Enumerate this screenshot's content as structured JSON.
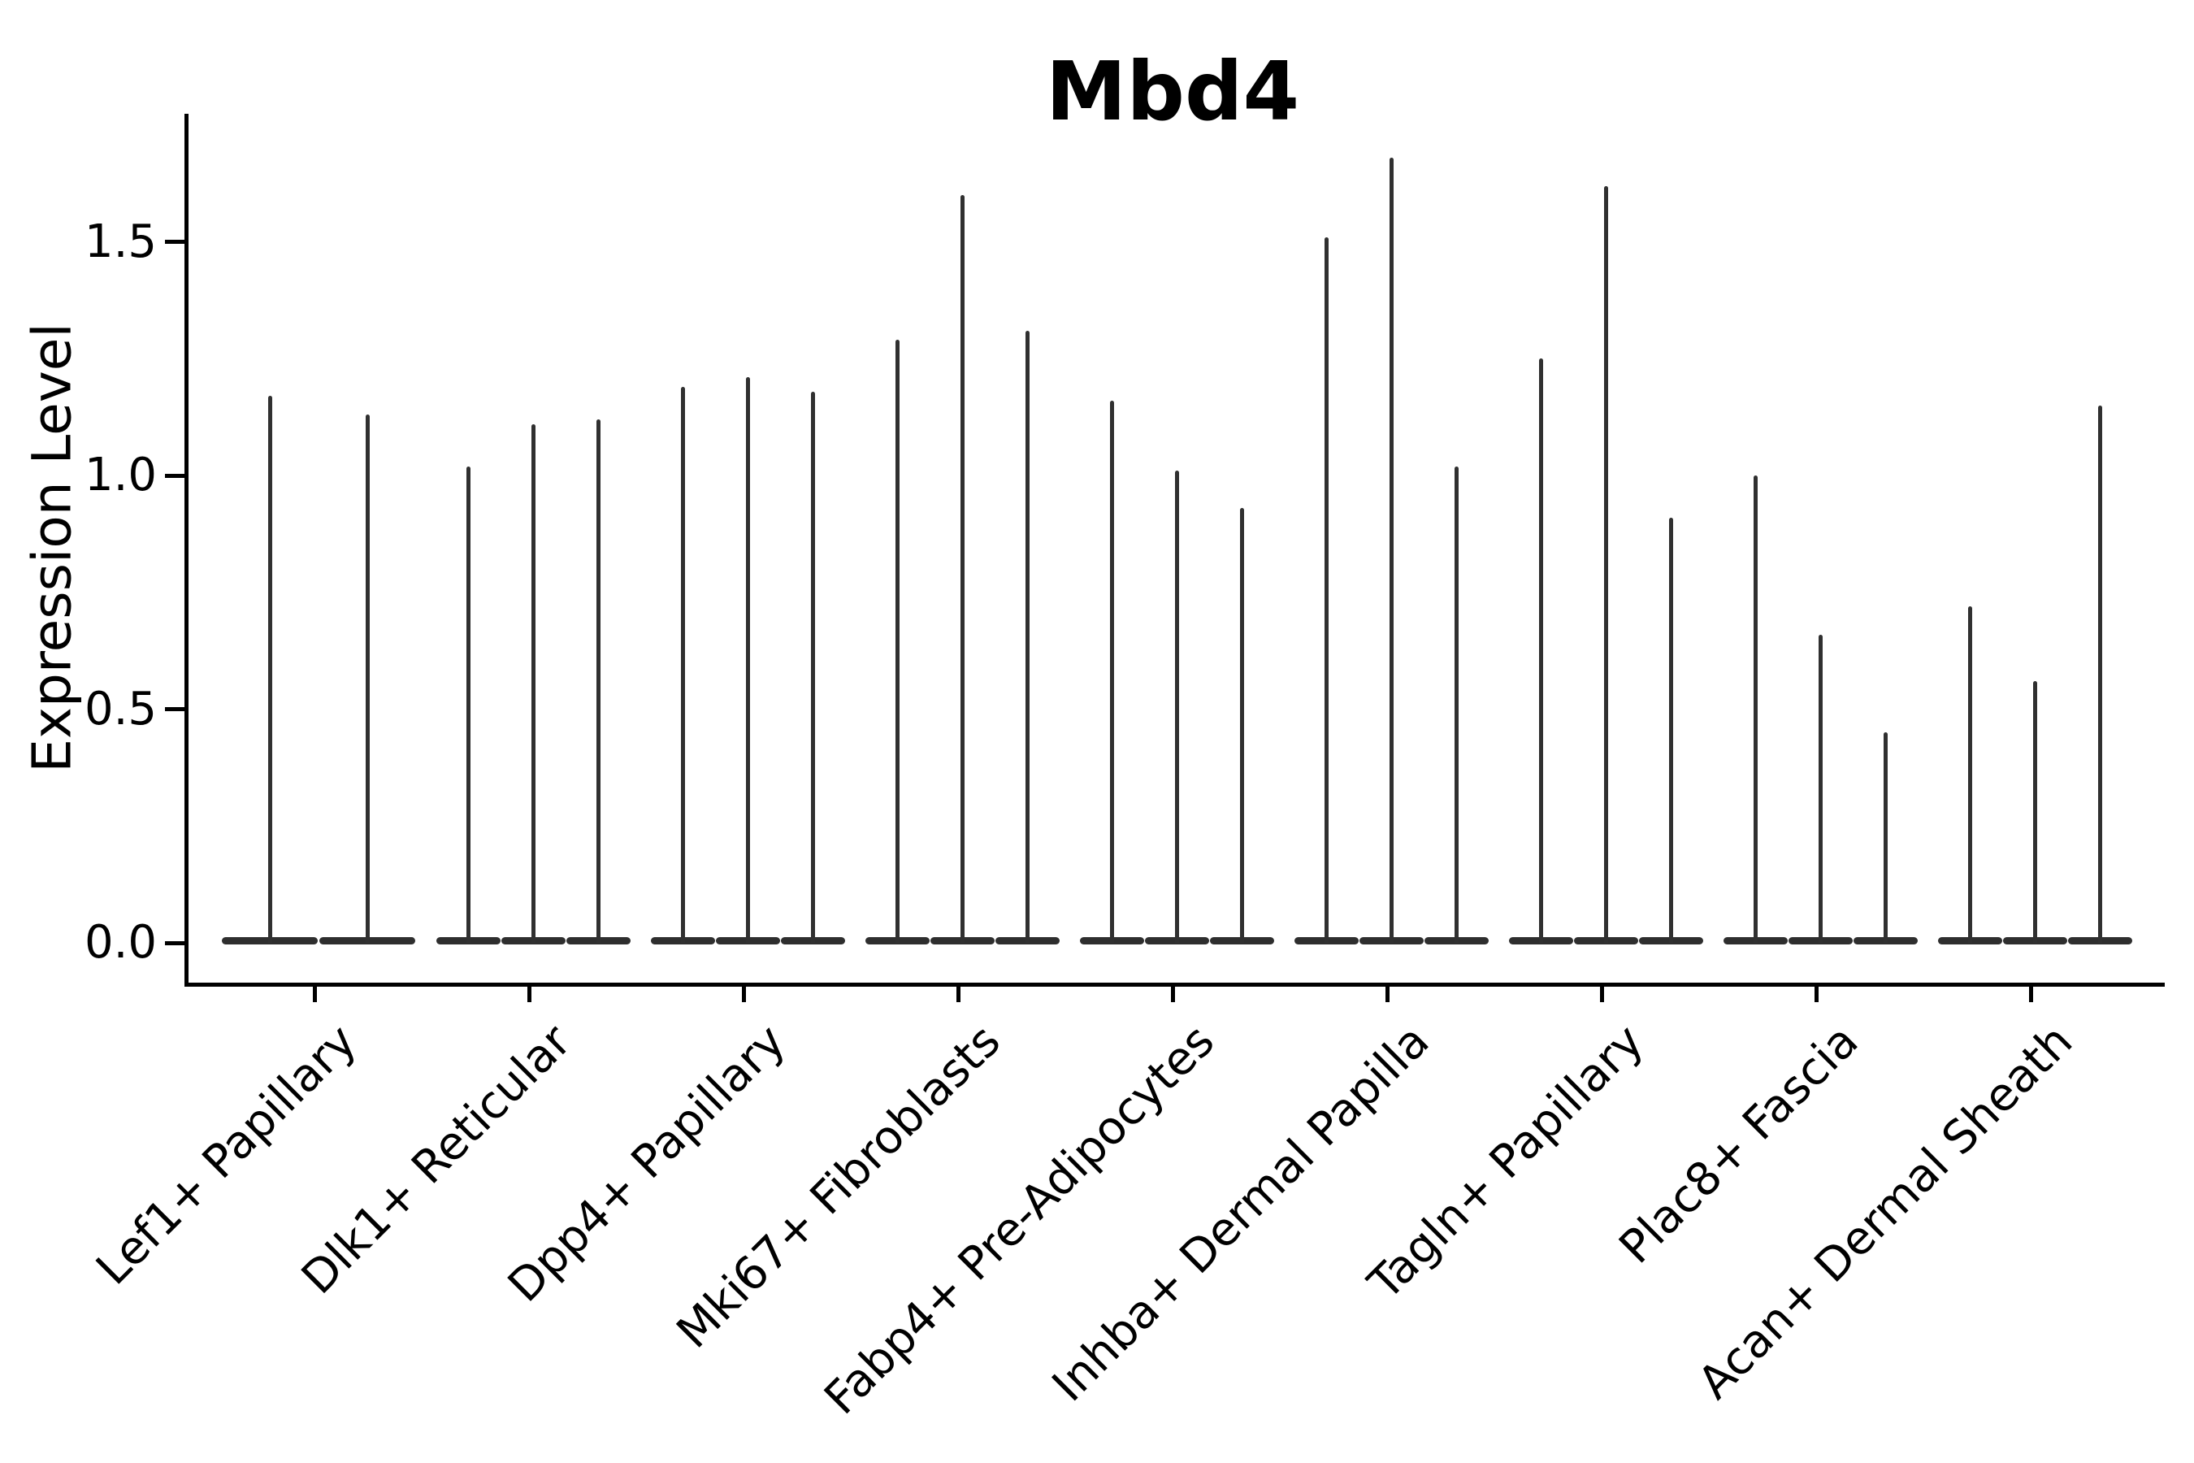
{
  "title": "Mbd4",
  "y_axis": {
    "label": "Expression Level",
    "tick_labels": [
      "0.0",
      "0.5",
      "1.0",
      "1.5"
    ],
    "tick_values": [
      0.0,
      0.5,
      1.0,
      1.5
    ]
  },
  "x_axis": {
    "categories": [
      "Lef1+ Papillary",
      "Dlk1+ Reticular",
      "Dpp4+ Papillary",
      "Mki67+ Fibroblasts",
      "Fabp4+ Pre-Adipocytes",
      "Inhba+ Dermal Papilla",
      "Tagln+ Papillary",
      "Plac8+ Fascia",
      "Acan+ Dermal Sheath"
    ]
  },
  "chart_data": {
    "type": "violin",
    "title": "Mbd4",
    "xlabel": "",
    "ylabel": "Expression Level",
    "ylim": [
      0,
      1.77
    ],
    "yticks": [
      0.0,
      0.5,
      1.0,
      1.5
    ],
    "grid": false,
    "legend": false,
    "categories": [
      "Lef1+ Papillary",
      "Dlk1+ Reticular",
      "Dpp4+ Papillary",
      "Mki67+ Fibroblasts",
      "Fabp4+ Pre-Adipocytes",
      "Inhba+ Dermal Papilla",
      "Tagln+ Papillary",
      "Plac8+ Fascia",
      "Acan+ Dermal Sheath"
    ],
    "series": [
      {
        "category": "Lef1+ Papillary",
        "violin_max_expression": [
          1.17,
          1.13
        ]
      },
      {
        "category": "Dlk1+ Reticular",
        "violin_max_expression": [
          1.02,
          1.11,
          1.12
        ]
      },
      {
        "category": "Dpp4+ Papillary",
        "violin_max_expression": [
          1.19,
          1.21,
          1.18
        ]
      },
      {
        "category": "Mki67+ Fibroblasts",
        "violin_max_expression": [
          1.29,
          1.6,
          1.31
        ]
      },
      {
        "category": "Fabp4+ Pre-Adipocytes",
        "violin_max_expression": [
          1.16,
          1.01,
          0.93
        ]
      },
      {
        "category": "Inhba+ Dermal Papilla",
        "violin_max_expression": [
          1.51,
          1.68,
          1.02
        ]
      },
      {
        "category": "Tagln+ Papillary",
        "violin_max_expression": [
          1.25,
          1.62,
          0.91
        ]
      },
      {
        "category": "Plac8+ Fascia",
        "violin_max_expression": [
          1.0,
          0.66,
          0.45
        ]
      },
      {
        "category": "Acan+ Dermal Sheath",
        "violin_max_expression": [
          0.72,
          0.56,
          1.15
        ]
      }
    ],
    "distribution_note": "Each violin is an extremely narrow spike: the density mass sits at expression 0 (wide flat base on the baseline) with a thin tail rising to the listed maximum expression value.",
    "colors": {
      "violin": "#303030",
      "axis": "#000000",
      "text": "#000000",
      "background": "#ffffff"
    }
  }
}
